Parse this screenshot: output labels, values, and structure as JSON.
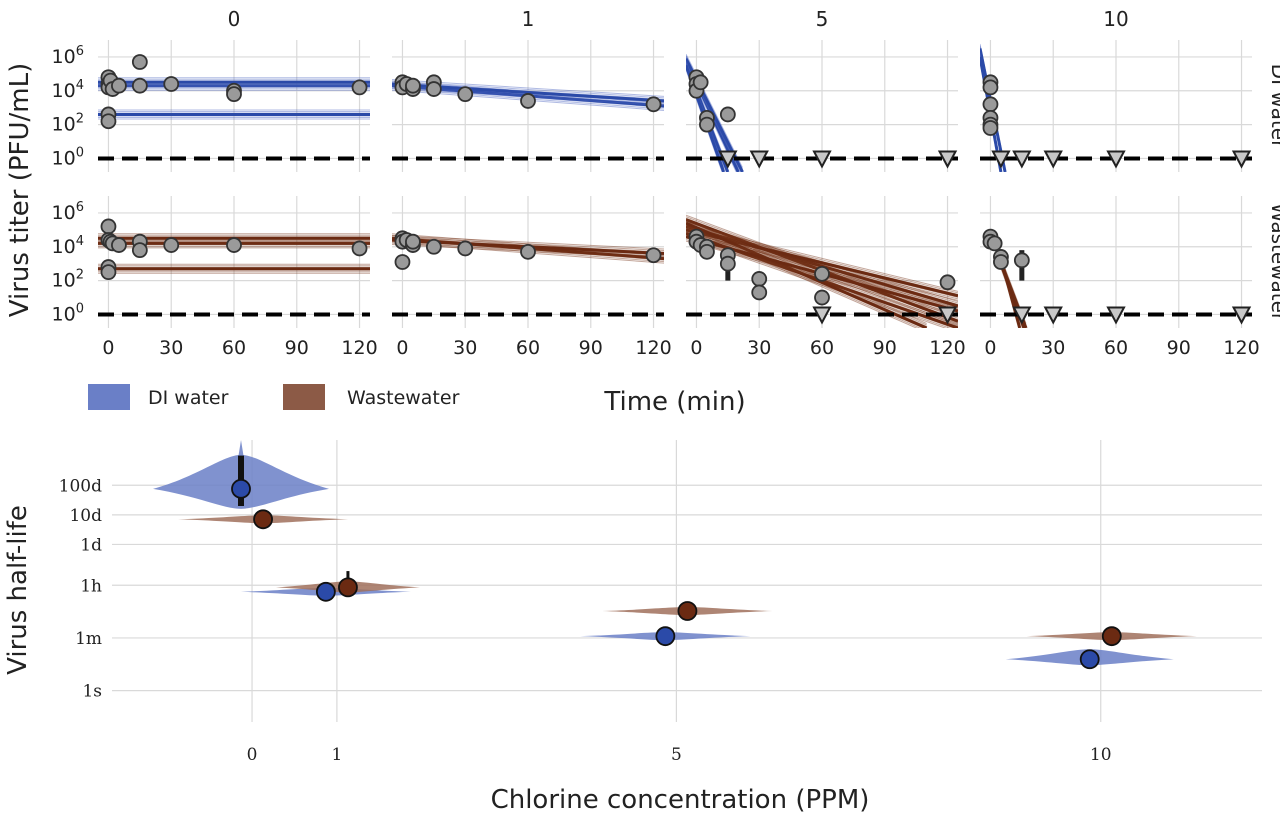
{
  "chart_data": [
    {
      "type": "scatter",
      "ylabel": "Virus titer (PFU/mL)",
      "xlabel": "Time (min)",
      "x_ticks": [
        0,
        30,
        60,
        90,
        120
      ],
      "xlim": [
        -5,
        125
      ],
      "y_ticks": [
        {
          "value": 6,
          "base": "10",
          "exp": "6"
        },
        {
          "value": 4,
          "base": "10",
          "exp": "4"
        },
        {
          "value": 2,
          "base": "10",
          "exp": "2"
        },
        {
          "value": 0,
          "base": "10",
          "exp": "0"
        }
      ],
      "ylim_log10": [
        -0.8,
        7
      ],
      "detection_limit_log10": 0,
      "columns": [
        "0",
        "1",
        "5",
        "10"
      ],
      "rows": [
        "DI water",
        "Wastewater"
      ],
      "legend": [
        {
          "name": "DI water",
          "color": "#6a7fc7"
        },
        {
          "name": "Wastewater",
          "color": "#8c5a46"
        }
      ],
      "colors": {
        "di": "#2b4aa8",
        "ww": "#6b2a12",
        "point": "#9a9a9a",
        "band_di": "#4d66c0",
        "band_ww": "#7a3a20"
      },
      "panels": [
        {
          "row": 0,
          "col": 0,
          "lines": [
            [
              -5,
              4.3,
              125,
              4.3
            ],
            [
              -5,
              4.5,
              125,
              4.5
            ],
            [
              -5,
              2.6,
              125,
              2.6
            ]
          ],
          "points": [
            [
              0,
              4.8
            ],
            [
              0,
              4.4
            ],
            [
              0,
              4.2
            ],
            [
              1,
              4.6
            ],
            [
              2,
              4.1
            ],
            [
              5,
              4.3
            ],
            [
              15,
              5.7
            ],
            [
              15,
              4.3
            ],
            [
              30,
              4.4
            ],
            [
              60,
              4.0
            ],
            [
              60,
              3.8
            ],
            [
              120,
              4.2
            ],
            [
              0,
              2.6
            ],
            [
              0,
              2.2
            ]
          ],
          "censored": [],
          "bars": []
        },
        {
          "row": 0,
          "col": 1,
          "lines": [
            [
              -5,
              4.3,
              125,
              3.1
            ],
            [
              -5,
              4.4,
              125,
              3.4
            ]
          ],
          "points": [
            [
              0,
              4.5
            ],
            [
              0,
              4.2
            ],
            [
              2,
              4.4
            ],
            [
              5,
              4.1
            ],
            [
              5,
              4.3
            ],
            [
              15,
              4.5
            ],
            [
              15,
              4.1
            ],
            [
              30,
              3.8
            ],
            [
              60,
              3.4
            ],
            [
              120,
              3.2
            ]
          ],
          "censored": [],
          "bars": []
        },
        {
          "row": 0,
          "col": 2,
          "lines": [
            [
              -5,
              5.8,
              20,
              -0.8
            ],
            [
              -5,
              5.6,
              15,
              -0.8
            ],
            [
              -5,
              5.9,
              22,
              -0.8
            ],
            [
              -5,
              5.5,
              13,
              -0.8
            ]
          ],
          "points": [
            [
              0,
              4.8
            ],
            [
              0,
              4.4
            ],
            [
              0,
              4.0
            ],
            [
              2,
              4.5
            ],
            [
              5,
              2.4
            ],
            [
              5,
              2.0
            ],
            [
              15,
              2.6
            ]
          ],
          "censored": [
            [
              15,
              0
            ],
            [
              30,
              0
            ],
            [
              60,
              0
            ],
            [
              120,
              0
            ]
          ],
          "bars": []
        },
        {
          "row": 0,
          "col": 3,
          "lines": [
            [
              -5,
              6.5,
              7,
              -0.8
            ],
            [
              -5,
              6.0,
              5,
              -0.8
            ]
          ],
          "points": [
            [
              0,
              4.5
            ],
            [
              0,
              4.2
            ],
            [
              0,
              3.2
            ],
            [
              0,
              2.4
            ],
            [
              0,
              2.0
            ],
            [
              0,
              1.8
            ]
          ],
          "censored": [
            [
              5,
              0
            ],
            [
              15,
              0
            ],
            [
              30,
              0
            ],
            [
              60,
              0
            ],
            [
              120,
              0
            ]
          ],
          "bars": []
        },
        {
          "row": 1,
          "col": 0,
          "lines": [
            [
              -5,
              4.2,
              125,
              4.2
            ],
            [
              -5,
              4.5,
              125,
              4.5
            ],
            [
              -5,
              2.7,
              125,
              2.7
            ]
          ],
          "points": [
            [
              0,
              5.2
            ],
            [
              0,
              4.4
            ],
            [
              1,
              4.3
            ],
            [
              2,
              4.2
            ],
            [
              5,
              4.1
            ],
            [
              15,
              4.3
            ],
            [
              15,
              3.8
            ],
            [
              30,
              4.1
            ],
            [
              60,
              4.1
            ],
            [
              120,
              3.9
            ],
            [
              0,
              2.8
            ],
            [
              0,
              2.5
            ]
          ],
          "censored": [],
          "bars": []
        },
        {
          "row": 1,
          "col": 1,
          "lines": [
            [
              -5,
              4.5,
              125,
              3.3
            ],
            [
              -5,
              4.4,
              125,
              3.6
            ]
          ],
          "points": [
            [
              0,
              4.5
            ],
            [
              0,
              4.3
            ],
            [
              0,
              3.1
            ],
            [
              2,
              4.4
            ],
            [
              5,
              4.1
            ],
            [
              5,
              4.3
            ],
            [
              15,
              4.0
            ],
            [
              30,
              3.9
            ],
            [
              60,
              3.7
            ],
            [
              120,
              3.5
            ]
          ],
          "censored": [],
          "bars": []
        },
        {
          "row": 1,
          "col": 2,
          "lines": [
            [
              -5,
              5.6,
              125,
              -0.4
            ],
            [
              -5,
              5.2,
              125,
              0.5
            ],
            [
              -5,
              5.0,
              125,
              1.1
            ],
            [
              -5,
              4.8,
              125,
              -0.8
            ],
            [
              -5,
              5.4,
              110,
              -0.8
            ],
            [
              -5,
              4.6,
              125,
              0.2
            ]
          ],
          "points": [
            [
              0,
              4.6
            ],
            [
              0,
              4.3
            ],
            [
              2,
              4.1
            ],
            [
              5,
              4.0
            ],
            [
              5,
              3.7
            ],
            [
              15,
              3.5
            ],
            [
              15,
              3.0
            ],
            [
              30,
              2.1
            ],
            [
              30,
              1.3
            ],
            [
              60,
              2.4
            ],
            [
              60,
              1.0
            ],
            [
              120,
              1.9
            ]
          ],
          "censored": [
            [
              60,
              0
            ],
            [
              120,
              0
            ]
          ],
          "bars": [
            [
              15,
              2.0,
              3.4
            ],
            [
              30,
              1.0,
              2.0
            ]
          ]
        },
        {
          "row": 1,
          "col": 3,
          "lines": [
            [
              5,
              3.3,
              14,
              -0.8
            ],
            [
              5,
              3.1,
              17,
              -0.8
            ],
            [
              5,
              3.0,
              16,
              -0.8
            ]
          ],
          "points": [
            [
              0,
              4.6
            ],
            [
              0,
              4.3
            ],
            [
              2,
              4.2
            ],
            [
              5,
              3.4
            ],
            [
              5,
              3.1
            ],
            [
              15,
              3.2
            ]
          ],
          "censored": [
            [
              15,
              0
            ],
            [
              30,
              0
            ],
            [
              60,
              0
            ],
            [
              120,
              0
            ]
          ],
          "bars": [
            [
              15,
              2.0,
              3.8
            ]
          ]
        }
      ]
    },
    {
      "type": "violin",
      "ylabel": "Virus half-life",
      "xlabel": "Chlorine concentration (PPM)",
      "x_ticks": [
        0,
        1,
        5,
        10
      ],
      "xlim": [
        -1.65,
        11.9
      ],
      "y_ticks": [
        {
          "label": "100d",
          "value": 1.0
        },
        {
          "label": "10d",
          "value": 0.0
        },
        {
          "label": "1d",
          "value": -1.0
        },
        {
          "label": "1h",
          "value": -2.38
        },
        {
          "label": "1m",
          "value": -4.16
        },
        {
          "label": "1s",
          "value": -5.94
        }
      ],
      "ylim_log10": [
        -7.0,
        2.8
      ],
      "series": [
        {
          "name": "DI water",
          "x_offset": -0.13,
          "color": "#2b4aa8",
          "fill": "#6a7fc7",
          "points": [
            {
              "x": 0,
              "median": 0.88,
              "lo": 0.3,
              "hi": 2.0
            },
            {
              "x": 1,
              "median": -2.6,
              "lo": -2.7,
              "hi": -2.5
            },
            {
              "x": 5,
              "median": -4.1,
              "lo": -4.2,
              "hi": -4.0
            },
            {
              "x": 10,
              "median": -4.88,
              "lo": -5.0,
              "hi": -4.7
            }
          ]
        },
        {
          "name": "Wastewater",
          "x_offset": 0.13,
          "color": "#6b2a12",
          "fill": "#a0705c",
          "points": [
            {
              "x": 0,
              "median": -0.15,
              "lo": -0.25,
              "hi": -0.05
            },
            {
              "x": 1,
              "median": -2.45,
              "lo": -2.6,
              "hi": -1.9
            },
            {
              "x": 5,
              "median": -3.25,
              "lo": -3.35,
              "hi": -3.15
            },
            {
              "x": 10,
              "median": -4.1,
              "lo": -4.2,
              "hi": -4.0
            }
          ]
        }
      ]
    }
  ]
}
